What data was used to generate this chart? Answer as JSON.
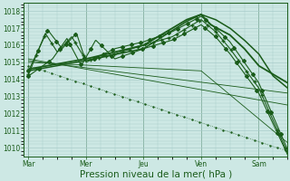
{
  "bg_color": "#cde8e4",
  "grid_color": "#a8ccca",
  "line_color_dark": "#1a5c1a",
  "line_color_med": "#1a7a1a",
  "xlabel": "Pression niveau de la mer( hPa )",
  "xlabel_fontsize": 7.5,
  "tick_labels": [
    "Mar",
    "Mer",
    "Jeu",
    "Ven",
    "Sam"
  ],
  "tick_positions": [
    0,
    24,
    48,
    72,
    96
  ],
  "ylim": [
    1009.5,
    1018.5
  ],
  "yticks": [
    1010,
    1011,
    1012,
    1013,
    1014,
    1015,
    1016,
    1017,
    1018
  ],
  "xlim": [
    -2,
    108
  ]
}
